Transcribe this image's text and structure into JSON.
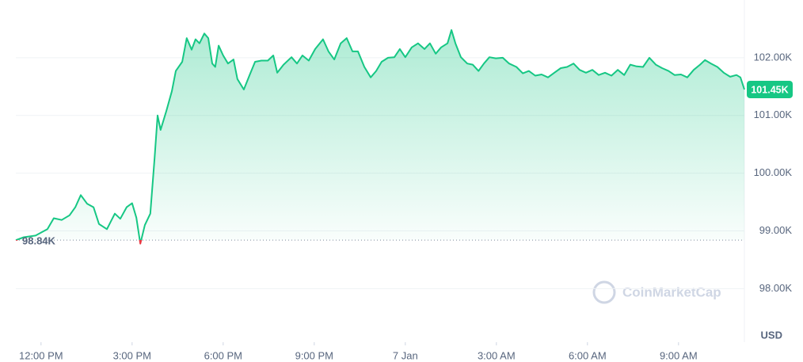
{
  "chart_data": {
    "type": "line",
    "color": "#16c784",
    "below_color": "#ea3943",
    "watermark": "CoinMarketCap",
    "y_unit": "USD",
    "reference_value": {
      "value": 98840,
      "label": "98.84K"
    },
    "last_value": {
      "value": 101450,
      "label": "101.45K"
    },
    "xlim": [
      11.17,
      35.17
    ],
    "xticks": [
      {
        "value": 12,
        "label": "12:00 PM"
      },
      {
        "value": 15,
        "label": "3:00 PM"
      },
      {
        "value": 18,
        "label": "6:00 PM"
      },
      {
        "value": 21,
        "label": "9:00 PM"
      },
      {
        "value": 24,
        "label": "7 Jan"
      },
      {
        "value": 27,
        "label": "3:00 AM"
      },
      {
        "value": 30,
        "label": "6:00 AM"
      },
      {
        "value": 33,
        "label": "9:00 AM"
      }
    ],
    "ylim": [
      97100,
      103000
    ],
    "yticks": [
      {
        "value": 98000,
        "label": "98.00K"
      },
      {
        "value": 99000,
        "label": "99.00K"
      },
      {
        "value": 100000,
        "label": "100.00K"
      },
      {
        "value": 101000,
        "label": "101.00K"
      },
      {
        "value": 102000,
        "label": "102.00K"
      }
    ],
    "grid": true,
    "x": [
      11.17,
      11.43,
      11.82,
      12.21,
      12.42,
      12.68,
      12.94,
      13.13,
      13.31,
      13.52,
      13.73,
      13.91,
      14.17,
      14.43,
      14.61,
      14.82,
      15.0,
      15.14,
      15.27,
      15.42,
      15.6,
      15.74,
      15.84,
      15.94,
      16.13,
      16.31,
      16.44,
      16.65,
      16.8,
      16.96,
      17.09,
      17.22,
      17.38,
      17.51,
      17.64,
      17.74,
      17.85,
      18.0,
      18.16,
      18.34,
      18.47,
      18.68,
      18.87,
      19.05,
      19.26,
      19.47,
      19.65,
      19.78,
      19.99,
      20.25,
      20.43,
      20.61,
      20.82,
      21.03,
      21.29,
      21.47,
      21.66,
      21.87,
      22.07,
      22.26,
      22.44,
      22.65,
      22.86,
      23.04,
      23.22,
      23.43,
      23.64,
      23.82,
      24.0,
      24.21,
      24.42,
      24.63,
      24.81,
      25.0,
      25.18,
      25.39,
      25.52,
      25.65,
      25.83,
      26.04,
      26.22,
      26.41,
      26.59,
      26.77,
      26.98,
      27.21,
      27.42,
      27.66,
      27.87,
      28.07,
      28.28,
      28.49,
      28.7,
      28.91,
      29.12,
      29.33,
      29.54,
      29.74,
      29.95,
      30.16,
      30.37,
      30.58,
      30.79,
      31.0,
      31.21,
      31.41,
      31.62,
      31.83,
      32.04,
      32.25,
      32.46,
      32.67,
      32.87,
      33.08,
      33.29,
      33.5,
      33.71,
      33.87,
      34.07,
      34.28,
      34.49,
      34.7,
      34.91,
      35.04,
      35.17
    ],
    "values": [
      98840,
      98890,
      98920,
      99030,
      99220,
      99190,
      99270,
      99410,
      99620,
      99470,
      99410,
      99120,
      99030,
      99300,
      99210,
      99410,
      99480,
      99230,
      98780,
      99100,
      99300,
      100260,
      101000,
      100750,
      101080,
      101420,
      101770,
      101930,
      102340,
      102140,
      102320,
      102250,
      102420,
      102340,
      101900,
      101840,
      102210,
      102040,
      101900,
      101970,
      101630,
      101450,
      101700,
      101930,
      101950,
      101950,
      102040,
      101740,
      101880,
      102010,
      101900,
      102040,
      101950,
      102150,
      102320,
      102110,
      101970,
      102250,
      102340,
      102110,
      102110,
      101840,
      101660,
      101770,
      101930,
      102000,
      102010,
      102150,
      102010,
      102180,
      102250,
      102150,
      102250,
      102070,
      102180,
      102250,
      102480,
      102250,
      102010,
      101900,
      101880,
      101770,
      101900,
      102010,
      101990,
      102000,
      101900,
      101840,
      101730,
      101770,
      101690,
      101710,
      101660,
      101740,
      101820,
      101840,
      101900,
      101790,
      101740,
      101790,
      101700,
      101740,
      101690,
      101790,
      101700,
      101880,
      101850,
      101840,
      102000,
      101880,
      101820,
      101770,
      101700,
      101710,
      101660,
      101790,
      101880,
      101960,
      101900,
      101840,
      101740,
      101670,
      101700,
      101660,
      101450
    ]
  }
}
